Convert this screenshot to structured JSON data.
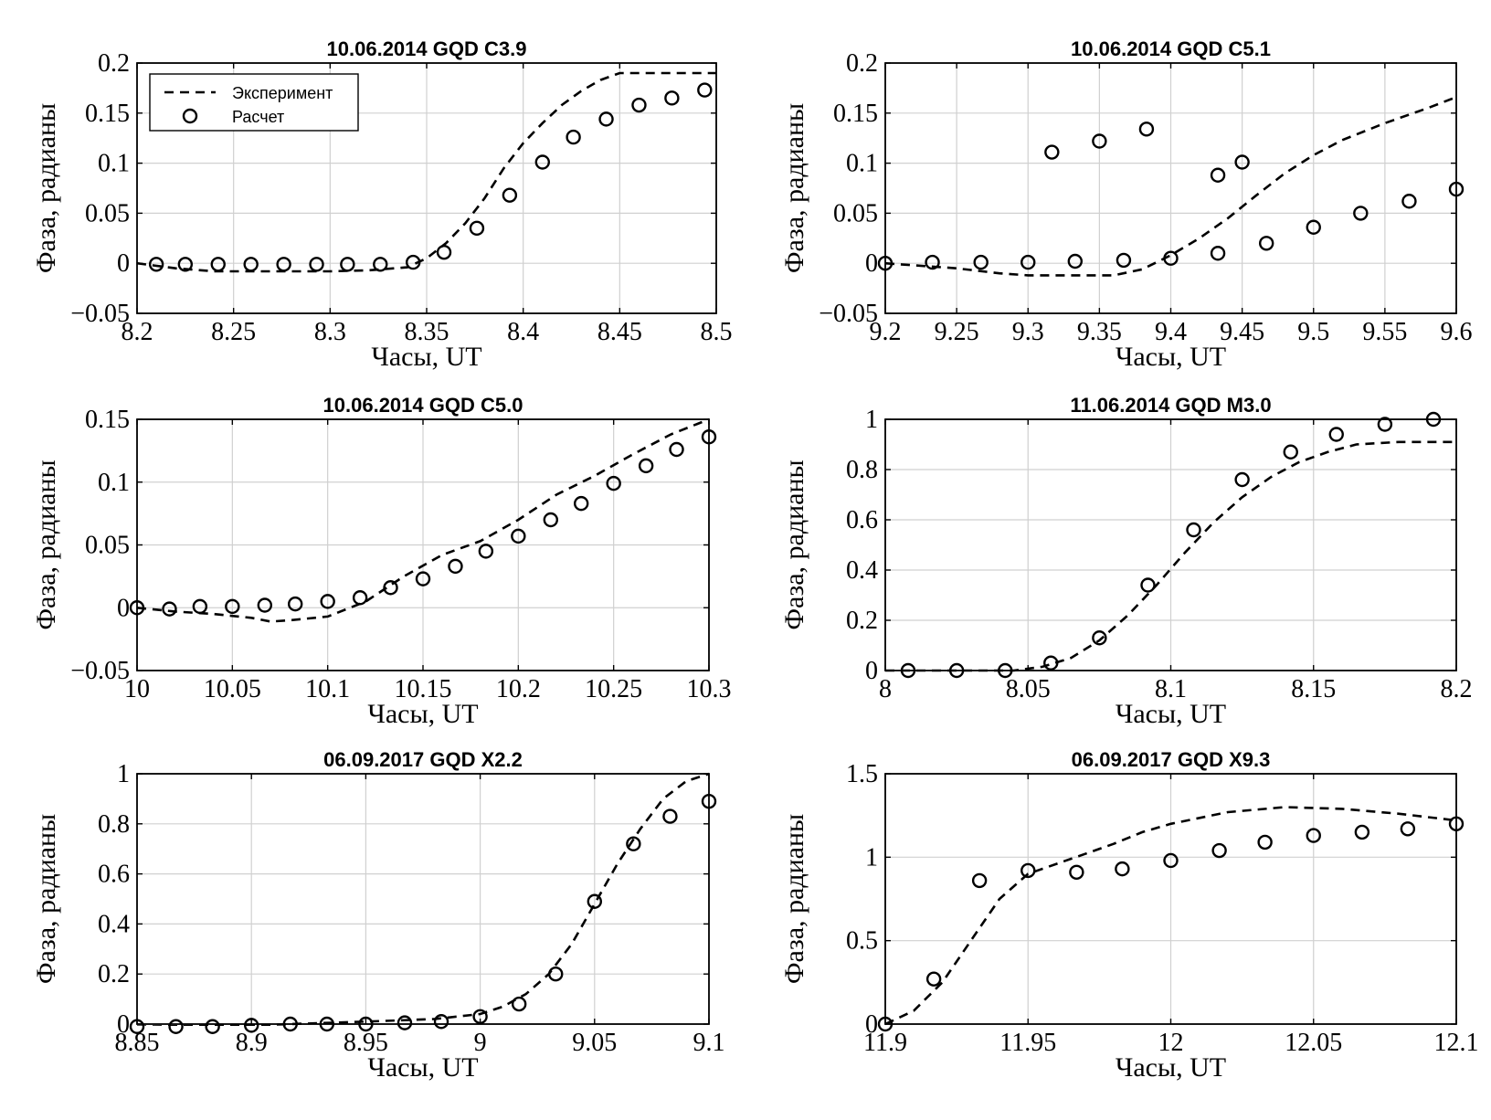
{
  "chart_data": [
    {
      "type": "line",
      "title": "10.06.2014   GQD   C3.9",
      "xlabel": "Часы, UT",
      "ylabel": "Фаза, радианы",
      "xlim": [
        8.2,
        8.5
      ],
      "ylim": [
        -0.05,
        0.2
      ],
      "xticks": [
        8.2,
        8.25,
        8.3,
        8.35,
        8.4,
        8.45,
        8.5
      ],
      "xtick_labels": [
        "8.2",
        "8.25",
        "8.3",
        "8.35",
        "8.4",
        "8.45",
        "8.5"
      ],
      "yticks": [
        -0.05,
        0,
        0.05,
        0.1,
        0.15,
        0.2
      ],
      "ytick_labels": [
        "−0.05",
        "0",
        "0.05",
        "0.1",
        "0.15",
        "0.2"
      ],
      "grid": true,
      "legend": {
        "position": "top-left",
        "entries": [
          "Эксперимент",
          "Расчет"
        ]
      },
      "series": [
        {
          "name": "Эксперимент",
          "style": "dashed-line",
          "x": [
            8.2,
            8.22,
            8.24,
            8.26,
            8.28,
            8.3,
            8.32,
            8.34,
            8.35,
            8.36,
            8.37,
            8.38,
            8.39,
            8.4,
            8.41,
            8.42,
            8.43,
            8.44,
            8.45,
            8.47,
            8.5
          ],
          "y": [
            0.0,
            -0.005,
            -0.008,
            -0.008,
            -0.008,
            -0.008,
            -0.007,
            -0.004,
            0.005,
            0.02,
            0.04,
            0.065,
            0.095,
            0.12,
            0.14,
            0.158,
            0.172,
            0.183,
            0.19,
            0.19,
            0.19
          ]
        },
        {
          "name": "Расчет",
          "style": "circle-markers",
          "x": [
            8.21,
            8.225,
            8.242,
            8.259,
            8.276,
            8.293,
            8.309,
            8.326,
            8.343,
            8.359,
            8.376,
            8.393,
            8.41,
            8.426,
            8.443,
            8.46,
            8.477,
            8.494
          ],
          "y": [
            -0.001,
            -0.001,
            -0.001,
            -0.001,
            -0.001,
            -0.001,
            -0.001,
            -0.001,
            0.001,
            0.011,
            0.035,
            0.068,
            0.101,
            0.126,
            0.144,
            0.158,
            0.165,
            0.173
          ]
        }
      ]
    },
    {
      "type": "line",
      "title": "10.06.2014   GQD   C5.1",
      "xlabel": "Часы, UT",
      "ylabel": "Фаза, радианы",
      "xlim": [
        9.2,
        9.6
      ],
      "ylim": [
        -0.05,
        0.2
      ],
      "xticks": [
        9.2,
        9.25,
        9.3,
        9.35,
        9.4,
        9.45,
        9.5,
        9.55,
        9.6
      ],
      "xtick_labels": [
        "9.2",
        "9.25",
        "9.3",
        "9.35",
        "9.4",
        "9.45",
        "9.5",
        "9.55",
        "9.6"
      ],
      "yticks": [
        -0.05,
        0,
        0.05,
        0.1,
        0.15,
        0.2
      ],
      "ytick_labels": [
        "−0.05",
        "0",
        "0.05",
        "0.1",
        "0.15",
        "0.2"
      ],
      "grid": true,
      "series": [
        {
          "style": "dashed-line",
          "x": [
            9.2,
            9.25,
            9.28,
            9.3,
            9.33,
            9.36,
            9.38,
            9.4,
            9.42,
            9.44,
            9.46,
            9.48,
            9.5,
            9.52,
            9.55,
            9.58,
            9.6
          ],
          "y": [
            0.0,
            -0.005,
            -0.01,
            -0.012,
            -0.012,
            -0.012,
            -0.006,
            0.008,
            0.025,
            0.045,
            0.068,
            0.09,
            0.108,
            0.123,
            0.14,
            0.155,
            0.166
          ]
        },
        {
          "style": "circle-markers",
          "x": [
            9.2,
            9.233,
            9.267,
            9.3,
            9.333,
            9.367,
            9.4,
            9.433,
            9.467,
            9.5,
            9.533,
            9.567,
            9.6,
            9.433,
            9.45,
            9.3167,
            9.35,
            9.383
          ],
          "y": [
            0.0,
            0.001,
            0.001,
            0.001,
            0.002,
            0.003,
            0.005,
            0.01,
            0.02,
            0.036,
            0.05,
            0.062,
            0.074,
            0.088,
            0.101,
            0.111,
            0.122,
            0.134
          ]
        }
      ]
    },
    {
      "type": "line",
      "title": "10.06.2014   GQD   C5.0",
      "xlabel": "Часы, UT",
      "ylabel": "Фаза, радианы",
      "xlim": [
        10.0,
        10.3
      ],
      "ylim": [
        -0.05,
        0.15
      ],
      "xticks": [
        10.0,
        10.05,
        10.1,
        10.15,
        10.2,
        10.25,
        10.3
      ],
      "xtick_labels": [
        "10",
        "10.05",
        "10.1",
        "10.15",
        "10.2",
        "10.25",
        "10.3"
      ],
      "yticks": [
        -0.05,
        0,
        0.05,
        0.1,
        0.15
      ],
      "ytick_labels": [
        "−0.05",
        "0",
        "0.05",
        "0.1",
        "0.15"
      ],
      "grid": true,
      "series": [
        {
          "style": "dashed-line",
          "x": [
            10.0,
            10.02,
            10.04,
            10.06,
            10.07,
            10.08,
            10.1,
            10.12,
            10.14,
            10.16,
            10.18,
            10.2,
            10.22,
            10.24,
            10.26,
            10.28,
            10.3
          ],
          "y": [
            0.0,
            -0.003,
            -0.005,
            -0.008,
            -0.011,
            -0.01,
            -0.007,
            0.005,
            0.025,
            0.042,
            0.053,
            0.07,
            0.09,
            0.105,
            0.122,
            0.138,
            0.15
          ]
        },
        {
          "style": "circle-markers",
          "x": [
            10.0,
            10.017,
            10.033,
            10.05,
            10.067,
            10.083,
            10.1,
            10.117,
            10.133,
            10.15,
            10.167,
            10.183,
            10.2,
            10.217,
            10.233,
            10.25,
            10.267,
            10.283,
            10.3
          ],
          "y": [
            0.0,
            -0.001,
            0.001,
            0.001,
            0.002,
            0.003,
            0.005,
            0.008,
            0.016,
            0.023,
            0.033,
            0.045,
            0.057,
            0.07,
            0.083,
            0.099,
            0.113,
            0.126,
            0.136
          ]
        }
      ]
    },
    {
      "type": "line",
      "title": "11.06.2014   GQD   M3.0",
      "xlabel": "Часы, UT",
      "ylabel": "Фаза, радианы",
      "xlim": [
        8.0,
        8.2
      ],
      "ylim": [
        0,
        1
      ],
      "xticks": [
        8.0,
        8.05,
        8.1,
        8.15,
        8.2
      ],
      "xtick_labels": [
        "8",
        "8.05",
        "8.1",
        "8.15",
        "8.2"
      ],
      "yticks": [
        0,
        0.2,
        0.4,
        0.6,
        0.8,
        1.0
      ],
      "ytick_labels": [
        "0",
        "0.2",
        "0.4",
        "0.6",
        "0.8",
        "1"
      ],
      "grid": true,
      "series": [
        {
          "style": "dashed-line",
          "x": [
            8.0,
            8.03,
            8.045,
            8.055,
            8.065,
            8.075,
            8.085,
            8.095,
            8.105,
            8.115,
            8.125,
            8.135,
            8.145,
            8.155,
            8.165,
            8.18,
            8.2
          ],
          "y": [
            0.0,
            0.0,
            0.0,
            0.015,
            0.05,
            0.12,
            0.22,
            0.34,
            0.47,
            0.59,
            0.69,
            0.77,
            0.83,
            0.87,
            0.9,
            0.91,
            0.91
          ]
        },
        {
          "style": "circle-markers",
          "x": [
            8.008,
            8.025,
            8.042,
            8.058,
            8.075,
            8.092,
            8.108,
            8.125,
            8.142,
            8.158,
            8.175,
            8.192
          ],
          "y": [
            0.0,
            0.0,
            0.0,
            0.03,
            0.13,
            0.34,
            0.56,
            0.76,
            0.87,
            0.94,
            0.98,
            1.0
          ]
        }
      ]
    },
    {
      "type": "line",
      "title": "06.09.2017   GQD   X2.2",
      "xlabel": "Часы, UT",
      "ylabel": "Фаза, радианы",
      "xlim": [
        8.85,
        9.1
      ],
      "ylim": [
        0,
        1
      ],
      "xticks": [
        8.85,
        8.9,
        8.95,
        9.0,
        9.05,
        9.1
      ],
      "xtick_labels": [
        "8.85",
        "8.9",
        "8.95",
        "9",
        "9.05",
        "9.1"
      ],
      "yticks": [
        0,
        0.2,
        0.4,
        0.6,
        0.8,
        1.0
      ],
      "ytick_labels": [
        "0",
        "0.2",
        "0.4",
        "0.6",
        "0.8",
        "1"
      ],
      "grid": true,
      "series": [
        {
          "style": "dashed-line",
          "x": [
            8.85,
            8.9,
            8.95,
            8.98,
            9.0,
            9.01,
            9.02,
            9.03,
            9.04,
            9.05,
            9.06,
            9.07,
            9.08,
            9.09,
            9.1
          ],
          "y": [
            -0.01,
            -0.005,
            0.01,
            0.02,
            0.04,
            0.07,
            0.12,
            0.2,
            0.32,
            0.48,
            0.64,
            0.78,
            0.9,
            0.97,
            1.0
          ]
        },
        {
          "style": "circle-markers",
          "x": [
            8.85,
            8.867,
            8.883,
            8.9,
            8.917,
            8.933,
            8.95,
            8.967,
            8.983,
            9.0,
            9.017,
            9.033,
            9.05,
            9.067,
            9.083,
            9.1
          ],
          "y": [
            -0.01,
            -0.01,
            -0.01,
            -0.005,
            0.0,
            0.0,
            0.0,
            0.005,
            0.01,
            0.03,
            0.08,
            0.2,
            0.49,
            0.72,
            0.83,
            0.89
          ]
        }
      ]
    },
    {
      "type": "line",
      "title": "06.09.2017   GQD   X9.3",
      "xlabel": "Часы, UT",
      "ylabel": "Фаза, радианы",
      "xlim": [
        11.9,
        12.1
      ],
      "ylim": [
        0,
        1.5
      ],
      "xticks": [
        11.9,
        11.95,
        12.0,
        12.05,
        12.1
      ],
      "xtick_labels": [
        "11.9",
        "11.95",
        "12",
        "12.05",
        "12.1"
      ],
      "yticks": [
        0,
        0.5,
        1.0,
        1.5
      ],
      "ytick_labels": [
        "0",
        "0.5",
        "1",
        "1.5"
      ],
      "grid": true,
      "series": [
        {
          "style": "dashed-line",
          "x": [
            11.9,
            11.91,
            11.92,
            11.93,
            11.94,
            11.95,
            11.96,
            11.97,
            11.98,
            11.99,
            12.0,
            12.02,
            12.04,
            12.06,
            12.08,
            12.1
          ],
          "y": [
            0.0,
            0.08,
            0.25,
            0.5,
            0.75,
            0.9,
            0.96,
            1.02,
            1.08,
            1.15,
            1.2,
            1.27,
            1.3,
            1.29,
            1.26,
            1.22
          ]
        },
        {
          "style": "circle-markers",
          "x": [
            11.9,
            11.917,
            11.933,
            11.95,
            11.967,
            11.983,
            12.0,
            12.017,
            12.033,
            12.05,
            12.067,
            12.083,
            12.1
          ],
          "y": [
            0.0,
            0.27,
            0.86,
            0.92,
            0.91,
            0.93,
            0.98,
            1.04,
            1.09,
            1.13,
            1.15,
            1.17,
            1.2
          ]
        }
      ]
    }
  ]
}
